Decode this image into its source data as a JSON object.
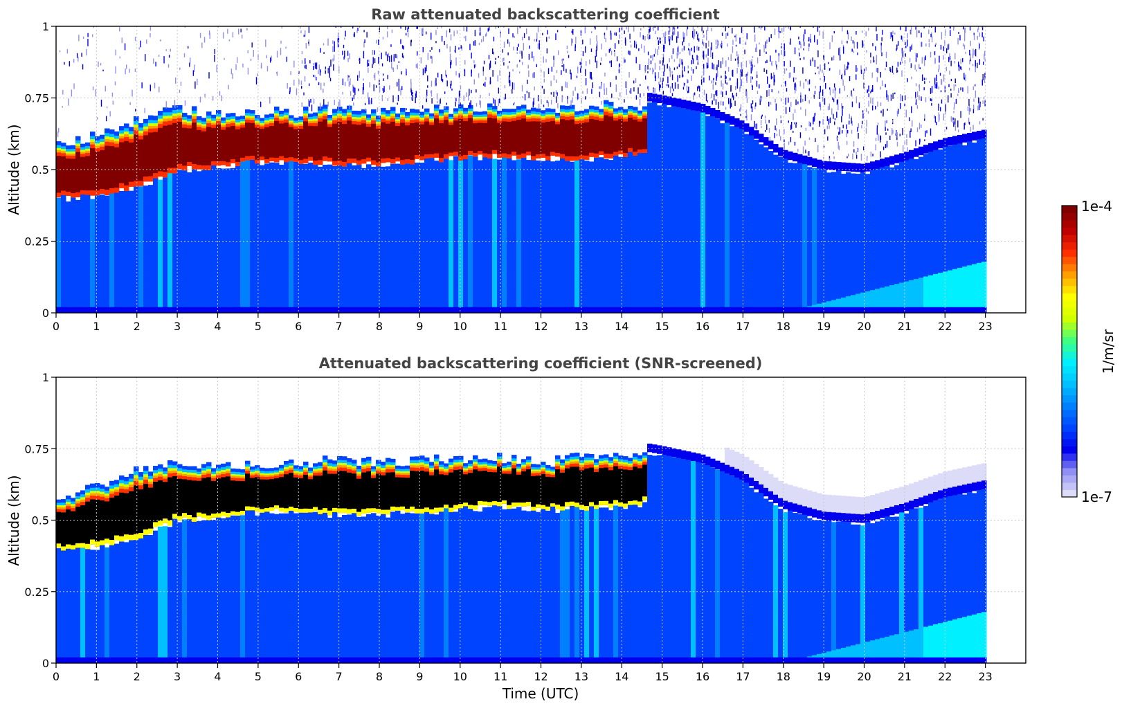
{
  "colors": {
    "colormap": [
      "#dcdcf8",
      "#8f8ff4",
      "#0000ee",
      "#0044ff",
      "#0080ff",
      "#00c0ff",
      "#00f0ff",
      "#40ff80",
      "#d0ff00",
      "#ffff00",
      "#ffa000",
      "#ff3000",
      "#c00000",
      "#800000"
    ],
    "background_clear": "#ffffff",
    "saturation_screened": "#000000",
    "grid": "#c8c8c8"
  },
  "chart_data": [
    {
      "type": "heatmap",
      "title": "Raw attenuated backscattering coefficient",
      "xlabel": "",
      "ylabel": "Altitude (km)",
      "xlim": [
        0,
        24
      ],
      "ylim": [
        0,
        1
      ],
      "xticks": [
        "0",
        "1",
        "2",
        "3",
        "4",
        "5",
        "6",
        "7",
        "8",
        "9",
        "10",
        "11",
        "12",
        "13",
        "14",
        "15",
        "16",
        "17",
        "18",
        "19",
        "20",
        "21",
        "22",
        "23"
      ],
      "yticks": [
        "0",
        "0.25",
        "0.5",
        "0.75",
        "1"
      ],
      "data_end_hour": 23,
      "grid": true,
      "cloud_layer": {
        "hours": [
          0,
          1,
          2,
          3,
          4,
          5,
          6,
          7,
          8,
          9,
          10,
          11,
          12,
          13,
          14,
          14.6
        ],
        "base_km": [
          0.4,
          0.41,
          0.44,
          0.5,
          0.51,
          0.53,
          0.53,
          0.52,
          0.52,
          0.53,
          0.54,
          0.55,
          0.54,
          0.54,
          0.55,
          0.56
        ],
        "top_km": [
          0.58,
          0.62,
          0.67,
          0.71,
          0.69,
          0.7,
          0.7,
          0.71,
          0.7,
          0.71,
          0.71,
          0.72,
          0.7,
          0.72,
          0.73,
          0.72
        ]
      },
      "boundary_layer_top": {
        "hours": [
          14.6,
          15,
          16,
          17,
          18,
          19,
          20,
          21,
          22,
          23
        ],
        "top_km": [
          0.74,
          0.73,
          0.7,
          0.64,
          0.54,
          0.5,
          0.49,
          0.53,
          0.58,
          0.61
        ]
      },
      "near_surface_enhancement": {
        "start_hour": 18,
        "end_hour": 23,
        "max_km": 0.18
      },
      "noise_above_layer": true
    },
    {
      "type": "heatmap",
      "title": "Attenuated backscattering coefficient (SNR-screened)",
      "xlabel": "Time (UTC)",
      "ylabel": "Altitude (km)",
      "xlim": [
        0,
        24
      ],
      "ylim": [
        0,
        1
      ],
      "xticks": [
        "0",
        "1",
        "2",
        "3",
        "4",
        "5",
        "6",
        "7",
        "8",
        "9",
        "10",
        "11",
        "12",
        "13",
        "14",
        "15",
        "16",
        "17",
        "18",
        "19",
        "20",
        "21",
        "22",
        "23"
      ],
      "yticks": [
        "0",
        "0.25",
        "0.5",
        "0.75",
        "1"
      ],
      "data_end_hour": 23,
      "grid": true,
      "cloud_layer": {
        "hours": [
          0,
          1,
          2,
          3,
          4,
          5,
          6,
          7,
          8,
          9,
          10,
          11,
          12,
          13,
          14,
          14.6
        ],
        "base_km": [
          0.4,
          0.41,
          0.44,
          0.5,
          0.51,
          0.53,
          0.53,
          0.52,
          0.52,
          0.53,
          0.54,
          0.55,
          0.54,
          0.54,
          0.55,
          0.56
        ],
        "top_km": [
          0.58,
          0.62,
          0.67,
          0.71,
          0.69,
          0.7,
          0.7,
          0.71,
          0.7,
          0.71,
          0.71,
          0.72,
          0.7,
          0.72,
          0.73,
          0.72
        ]
      },
      "boundary_layer_top": {
        "hours": [
          14.6,
          15,
          16,
          17,
          18,
          19,
          20,
          21,
          22,
          23
        ],
        "top_km": [
          0.74,
          0.73,
          0.7,
          0.64,
          0.54,
          0.5,
          0.49,
          0.53,
          0.58,
          0.61
        ]
      },
      "near_surface_enhancement": {
        "start_hour": 18,
        "end_hour": 23,
        "max_km": 0.18
      },
      "noise_above_layer": false
    }
  ],
  "colorbar": {
    "label": "1/m/sr",
    "max_label": "1e-4",
    "min_label": "1e-7",
    "scale": "log",
    "range": [
      1e-07,
      0.0001
    ]
  }
}
